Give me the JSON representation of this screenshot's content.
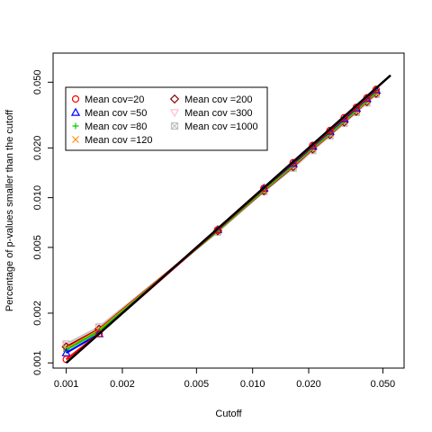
{
  "chart_data": {
    "type": "line",
    "xlabel": "Cutoff",
    "ylabel": "Percentage of p-values smaller than the cutoff",
    "xscale": "log",
    "yscale": "log",
    "xlim": [
      0.00085,
      0.065
    ],
    "ylim": [
      0.00093,
      0.075
    ],
    "xticks": [
      0.001,
      0.002,
      0.005,
      0.01,
      0.02,
      0.05
    ],
    "xticklabels": [
      "0.001",
      "0.002",
      "0.005",
      "0.010",
      "0.020",
      "0.050"
    ],
    "yticks": [
      0.001,
      0.002,
      0.005,
      0.01,
      0.02,
      0.05
    ],
    "yticklabels": [
      "0.001",
      "0.002",
      "0.005",
      "0.010",
      "0.020",
      "0.050"
    ],
    "legend_position": "top-left",
    "grid": false,
    "x": [
      0.001,
      0.0015,
      0.0065,
      0.0115,
      0.0165,
      0.021,
      0.026,
      0.031,
      0.036,
      0.041,
      0.046
    ],
    "reference_line": {
      "x": [
        0.001,
        0.055
      ],
      "y": [
        0.001,
        0.055
      ],
      "color": "#000000"
    },
    "series": [
      {
        "name": "Mean cov=20",
        "color": "#ff0000",
        "marker": "circle",
        "values": [
          0.00105,
          0.0015,
          0.0064,
          0.0114,
          0.0163,
          0.0207,
          0.0255,
          0.0305,
          0.0352,
          0.0402,
          0.0452
        ]
      },
      {
        "name": "Mean cov =50",
        "color": "#0000ff",
        "marker": "triangle",
        "values": [
          0.00115,
          0.0015,
          0.0064,
          0.0114,
          0.0161,
          0.0205,
          0.0252,
          0.03,
          0.0348,
          0.0398,
          0.0448
        ]
      },
      {
        "name": "Mean cov =80",
        "color": "#00cd00",
        "marker": "plus",
        "values": [
          0.0012,
          0.00155,
          0.0063,
          0.0112,
          0.0158,
          0.0201,
          0.0246,
          0.0293,
          0.034,
          0.0389,
          0.0437
        ]
      },
      {
        "name": "Mean cov =120",
        "color": "#ff8c00",
        "marker": "x",
        "values": [
          0.00122,
          0.00158,
          0.0063,
          0.0111,
          0.0156,
          0.0199,
          0.0243,
          0.029,
          0.0336,
          0.0385,
          0.0432
        ]
      },
      {
        "name": "Mean cov =200",
        "color": "#8b0000",
        "marker": "diamond",
        "values": [
          0.00125,
          0.0016,
          0.0063,
          0.011,
          0.0154,
          0.0197,
          0.0241,
          0.0287,
          0.0333,
          0.0381,
          0.0428
        ]
      },
      {
        "name": "Mean cov =300",
        "color": "#ffc0cb",
        "marker": "triangle-down",
        "values": [
          0.00127,
          0.00162,
          0.0063,
          0.011,
          0.0153,
          0.0195,
          0.0239,
          0.0285,
          0.0331,
          0.0378,
          0.0425
        ]
      },
      {
        "name": "Mean cov =1000",
        "color": "#c0c0c0",
        "marker": "boxed-x",
        "values": [
          0.0013,
          0.00165,
          0.0062,
          0.0109,
          0.0151,
          0.0193,
          0.0237,
          0.0282,
          0.0328,
          0.0375,
          0.0422
        ]
      }
    ]
  }
}
